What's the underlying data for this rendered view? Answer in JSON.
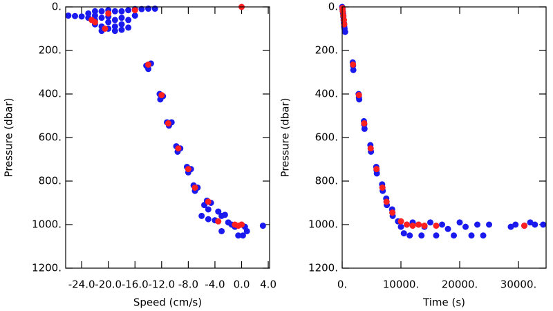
{
  "chart_data": [
    {
      "type": "scatter",
      "x_label": "Speed (cm/s)",
      "y_label": "Pressure (dbar)",
      "xlim": [
        -26.4,
        4.2
      ],
      "ylim": [
        0,
        1200
      ],
      "y_inverted": true,
      "xticks": [
        {
          "value": -24,
          "label": "-24.0"
        },
        {
          "value": -20,
          "label": "-20.0"
        },
        {
          "value": -16,
          "label": "-16.0"
        },
        {
          "value": -12,
          "label": "-12.0"
        },
        {
          "value": -8,
          "label": "-8.0"
        },
        {
          "value": -4,
          "label": "-4.0"
        },
        {
          "value": 0,
          "label": "0.0"
        },
        {
          "value": 4,
          "label": "4.0"
        }
      ],
      "yticks": [
        {
          "value": 0,
          "label": "0."
        },
        {
          "value": 200,
          "label": "200."
        },
        {
          "value": 400,
          "label": "400."
        },
        {
          "value": 600,
          "label": "600."
        },
        {
          "value": 800,
          "label": "800."
        },
        {
          "value": 1000,
          "label": "1000."
        },
        {
          "value": 1200,
          "label": "1200."
        }
      ],
      "series": [
        {
          "color": "#1a1aee",
          "x": [
            -26,
            -25,
            -24,
            -23,
            -23,
            -22,
            -22,
            -22,
            -22,
            -21,
            -21,
            -21,
            -21,
            -20,
            -20,
            -20,
            -20,
            -19,
            -19,
            -19,
            -19,
            -18,
            -18,
            -18,
            -18,
            -17,
            -17,
            -17,
            -16,
            -16,
            -15,
            -14,
            -13,
            -14.3,
            -13.6,
            -14,
            -12.3,
            -11.8,
            -12.2,
            -11.2,
            -10.5,
            -10.9,
            -9.8,
            -9.2,
            -9.6,
            -8.2,
            -7.6,
            -8,
            -7.2,
            -6.6,
            -7,
            -5.2,
            -4.6,
            -5.6,
            -5,
            -3.5,
            -3,
            -2.5,
            -4,
            -5,
            -6,
            -2,
            -1.5,
            -1,
            0,
            0.5,
            0.8,
            -0.5,
            0.2,
            -3,
            3.2
          ],
          "values": [
            40,
            42,
            44,
            30,
            50,
            20,
            40,
            60,
            80,
            20,
            50,
            90,
            110,
            15,
            45,
            70,
            100,
            20,
            60,
            90,
            110,
            20,
            50,
            80,
            105,
            15,
            60,
            95,
            10,
            40,
            10,
            8,
            8,
            270,
            260,
            285,
            400,
            410,
            425,
            530,
            530,
            545,
            640,
            650,
            665,
            735,
            745,
            760,
            820,
            830,
            845,
            890,
            900,
            910,
            930,
            940,
            960,
            955,
            980,
            975,
            960,
            990,
            1000,
            1010,
            1000,
            1010,
            1030,
            1050,
            1050,
            1030,
            1005
          ]
        },
        {
          "color": "#ff2020",
          "x": [
            -20,
            -22,
            -22.5,
            -20.5,
            -16,
            0,
            -14,
            -12,
            -11,
            -9.5,
            -8,
            -7,
            -5,
            -3.5,
            -1,
            -0.5,
            0
          ],
          "values": [
            30,
            70,
            60,
            100,
            15,
            0,
            265,
            405,
            535,
            650,
            745,
            830,
            895,
            985,
            1000,
            1005,
            1000
          ]
        }
      ]
    },
    {
      "type": "scatter",
      "x_label": "Time (s)",
      "y_label": "Pressure (dbar)",
      "xlim": [
        0,
        34700
      ],
      "ylim": [
        0,
        1200
      ],
      "y_inverted": true,
      "xticks": [
        {
          "value": 0,
          "label": "0."
        },
        {
          "value": 10000,
          "label": "10000."
        },
        {
          "value": 20000,
          "label": "20000."
        },
        {
          "value": 30000,
          "label": "30000."
        }
      ],
      "yticks": [
        {
          "value": 0,
          "label": "0."
        },
        {
          "value": 200,
          "label": "200."
        },
        {
          "value": 400,
          "label": "400."
        },
        {
          "value": 600,
          "label": "600."
        },
        {
          "value": 800,
          "label": "800."
        },
        {
          "value": 1000,
          "label": "1000."
        },
        {
          "value": 1200,
          "label": "1200."
        }
      ],
      "series": [
        {
          "color": "#1a1aee",
          "x": [
            0,
            50,
            100,
            150,
            200,
            250,
            300,
            350,
            400,
            500,
            1800,
            1850,
            1900,
            2800,
            2850,
            2900,
            3700,
            3750,
            3800,
            4800,
            4850,
            4900,
            5800,
            5850,
            5900,
            6800,
            6850,
            6900,
            7500,
            7550,
            7600,
            8500,
            8550,
            8600,
            9500,
            10000,
            10500,
            11000,
            11500,
            12000,
            13000,
            13500,
            14000,
            15000,
            16000,
            17000,
            18000,
            19000,
            20000,
            21000,
            22000,
            23000,
            24000,
            25000,
            28700,
            29500,
            31000,
            32000,
            32800,
            34200
          ],
          "values": [
            0,
            10,
            20,
            30,
            45,
            60,
            75,
            90,
            100,
            115,
            255,
            270,
            290,
            400,
            415,
            425,
            525,
            540,
            560,
            635,
            650,
            665,
            735,
            750,
            765,
            815,
            830,
            845,
            880,
            895,
            910,
            930,
            945,
            960,
            985,
            1010,
            1040,
            1000,
            1050,
            990,
            1000,
            1050,
            1010,
            990,
            1050,
            1000,
            1020,
            1050,
            990,
            1010,
            1050,
            1000,
            1050,
            1000,
            1010,
            1000,
            1005,
            990,
            1000,
            1000
          ]
        },
        {
          "color": "#ff2020",
          "x": [
            50,
            100,
            200,
            300,
            350,
            1850,
            2850,
            3750,
            4850,
            5850,
            6850,
            7550,
            8550,
            10000,
            11000,
            12000,
            13000,
            14000,
            16000,
            31000
          ],
          "values": [
            5,
            20,
            40,
            60,
            80,
            265,
            405,
            535,
            650,
            745,
            830,
            895,
            945,
            985,
            1000,
            1005,
            1000,
            1005,
            1005,
            1005
          ]
        }
      ]
    }
  ]
}
